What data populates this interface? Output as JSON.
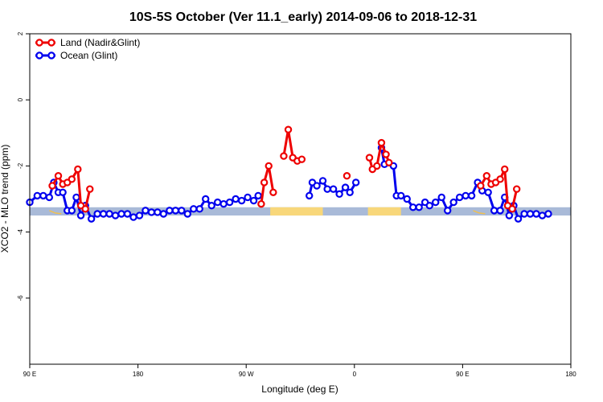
{
  "chart_data": {
    "type": "line",
    "title": "10S-5S October (Ver 11.1_early)   2014-09-06 to 2018-12-31",
    "xlabel": "Longitude (deg E)",
    "ylabel": "XCO2 - MLO trend (ppm)",
    "xlim": [
      90,
      450
    ],
    "ylim": [
      -8,
      2
    ],
    "x_ticks": [
      {
        "value": 90,
        "label": "90 E"
      },
      {
        "value": 162,
        "label": "180"
      },
      {
        "value": 234,
        "label": "90 W"
      },
      {
        "value": 306,
        "label": "0"
      },
      {
        "value": 378,
        "label": "90 E"
      },
      {
        "value": 450,
        "label": "180"
      }
    ],
    "y_ticks": [
      {
        "value": 2,
        "label": "2"
      },
      {
        "value": 0,
        "label": "0"
      },
      {
        "value": -2,
        "label": "-2"
      },
      {
        "value": -4,
        "label": "-4"
      },
      {
        "value": -6,
        "label": "-6"
      }
    ],
    "legend_position": "top-left",
    "series": [
      {
        "name": "Land (Nadir&Glint)",
        "color": "#ee0000",
        "segments": [
          [
            [
              105,
              -2.6
            ],
            [
              109,
              -2.3
            ],
            [
              112,
              -2.55
            ],
            [
              115,
              -2.5
            ],
            [
              118,
              -2.4
            ],
            [
              122,
              -2.1
            ],
            [
              124,
              -3.2
            ],
            [
              127,
              -3.3
            ],
            [
              130,
              -2.7
            ]
          ],
          [
            [
              244,
              -3.15
            ],
            [
              246,
              -2.5
            ],
            [
              249,
              -2.0
            ],
            [
              252,
              -2.8
            ]
          ],
          [
            [
              259,
              -1.7
            ],
            [
              262,
              -0.9
            ],
            [
              265,
              -1.75
            ],
            [
              268,
              -1.85
            ],
            [
              271,
              -1.8
            ]
          ],
          [
            [
              301,
              -2.3
            ]
          ],
          [
            [
              316,
              -1.75
            ],
            [
              318,
              -2.1
            ],
            [
              321,
              -2.0
            ],
            [
              324,
              -1.3
            ],
            [
              327,
              -1.65
            ],
            [
              329,
              -1.9
            ]
          ],
          [
            [
              390,
              -2.6
            ],
            [
              394,
              -2.3
            ],
            [
              397,
              -2.55
            ],
            [
              400,
              -2.5
            ],
            [
              403,
              -2.4
            ],
            [
              406,
              -2.1
            ],
            [
              408,
              -3.2
            ],
            [
              411,
              -3.3
            ],
            [
              414,
              -2.7
            ]
          ]
        ]
      },
      {
        "name": "Ocean (Glint)",
        "color": "#0000ee",
        "segments": [
          [
            [
              90,
              -3.1
            ],
            [
              95,
              -2.9
            ],
            [
              99,
              -2.9
            ],
            [
              103,
              -2.95
            ],
            [
              106,
              -2.5
            ],
            [
              109,
              -2.8
            ],
            [
              112,
              -2.8
            ],
            [
              115,
              -3.35
            ],
            [
              118,
              -3.35
            ],
            [
              121,
              -2.95
            ],
            [
              124,
              -3.5
            ],
            [
              127,
              -3.2
            ],
            [
              131,
              -3.6
            ],
            [
              135,
              -3.45
            ],
            [
              139,
              -3.45
            ],
            [
              143,
              -3.45
            ],
            [
              147,
              -3.5
            ],
            [
              151,
              -3.45
            ],
            [
              155,
              -3.45
            ],
            [
              159,
              -3.55
            ],
            [
              163,
              -3.5
            ],
            [
              167,
              -3.35
            ],
            [
              171,
              -3.4
            ],
            [
              175,
              -3.4
            ],
            [
              179,
              -3.45
            ],
            [
              183,
              -3.35
            ],
            [
              187,
              -3.35
            ],
            [
              191,
              -3.35
            ],
            [
              195,
              -3.45
            ],
            [
              199,
              -3.3
            ],
            [
              203,
              -3.3
            ],
            [
              207,
              -3.0
            ],
            [
              211,
              -3.2
            ],
            [
              215,
              -3.1
            ],
            [
              219,
              -3.15
            ],
            [
              223,
              -3.1
            ],
            [
              227,
              -3.0
            ],
            [
              231,
              -3.05
            ],
            [
              235,
              -2.95
            ],
            [
              239,
              -3.05
            ],
            [
              242,
              -2.9
            ]
          ],
          [
            [
              276,
              -2.9
            ],
            [
              278,
              -2.5
            ],
            [
              281,
              -2.6
            ],
            [
              285,
              -2.45
            ],
            [
              288,
              -2.7
            ],
            [
              292,
              -2.7
            ],
            [
              296,
              -2.85
            ],
            [
              300,
              -2.65
            ],
            [
              303,
              -2.8
            ],
            [
              307,
              -2.5
            ]
          ],
          [
            [
              324,
              -1.45
            ],
            [
              326,
              -1.95
            ],
            [
              332,
              -2.0
            ],
            [
              334,
              -2.9
            ],
            [
              337,
              -2.9
            ],
            [
              341,
              -3.0
            ],
            [
              345,
              -3.25
            ],
            [
              349,
              -3.25
            ],
            [
              353,
              -3.1
            ],
            [
              356,
              -3.2
            ],
            [
              360,
              -3.1
            ],
            [
              364,
              -2.95
            ],
            [
              368,
              -3.35
            ],
            [
              372,
              -3.1
            ],
            [
              376,
              -2.95
            ],
            [
              380,
              -2.9
            ],
            [
              384,
              -2.9
            ],
            [
              388,
              -2.5
            ],
            [
              391,
              -2.75
            ],
            [
              395,
              -2.8
            ],
            [
              399,
              -3.35
            ],
            [
              403,
              -3.35
            ],
            [
              406,
              -2.95
            ],
            [
              409,
              -3.5
            ],
            [
              412,
              -3.2
            ],
            [
              415,
              -3.6
            ],
            [
              419,
              -3.45
            ],
            [
              423,
              -3.45
            ],
            [
              427,
              -3.45
            ],
            [
              431,
              -3.5
            ],
            [
              435,
              -3.45
            ]
          ]
        ]
      }
    ],
    "reference_band": {
      "y_range": [
        -3.5,
        -3.25
      ],
      "color": "#a9bad8",
      "land_color": "#f8d77a",
      "land_x_ranges": [
        [
          250,
          285
        ],
        [
          315,
          337
        ]
      ],
      "island_color": "#f0c050",
      "island_x_ranges": [
        [
          103,
          111
        ],
        [
          385,
          393
        ]
      ]
    }
  }
}
